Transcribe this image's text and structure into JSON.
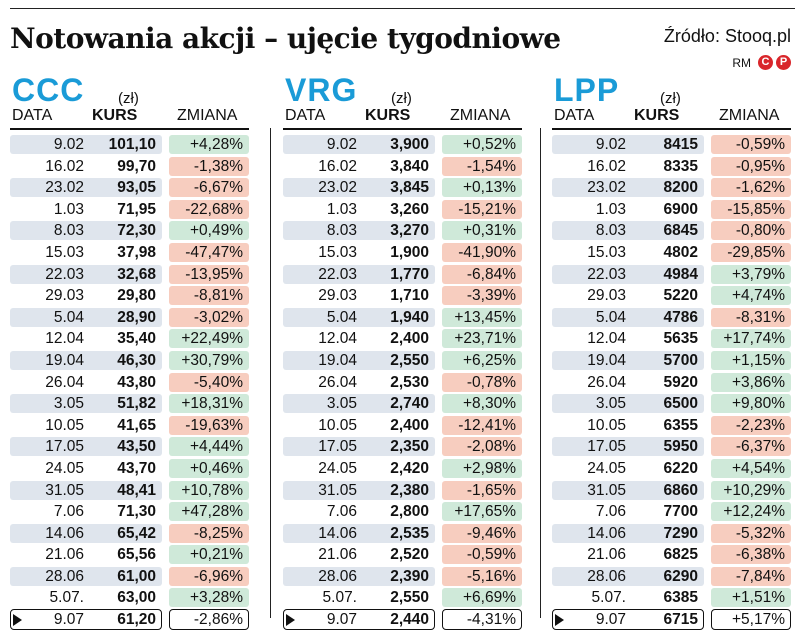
{
  "title": "Notowania akcji – ujęcie tygodniowe",
  "source": "Źródło: Stooq.pl",
  "logo": {
    "rm": "RM",
    "c": "C",
    "p": "P"
  },
  "headers": {
    "unit": "(zł)",
    "data": "DATA",
    "kurs": "KURS",
    "zmiana": "ZMIANA"
  },
  "colors": {
    "ticker": "#1a9bd7",
    "positive": "#cfe9d9",
    "negative": "#f7cdbf",
    "row_shade": "#dfe5ed",
    "logo_red": "#d9262b"
  },
  "chart_data": [
    {
      "type": "table",
      "ticker": "CCC",
      "columns": [
        "DATA",
        "KURS (zł)",
        "ZMIANA"
      ],
      "dates": [
        "9.02",
        "16.02",
        "23.02",
        "1.03",
        "8.03",
        "15.03",
        "22.03",
        "29.03",
        "5.04",
        "12.04",
        "19.04",
        "26.04",
        "3.05",
        "10.05",
        "17.05",
        "24.05",
        "31.05",
        "7.06",
        "14.06",
        "21.06",
        "28.06",
        "5.07.",
        "9.07"
      ],
      "kurs": [
        "101,10",
        "99,70",
        "93,05",
        "71,95",
        "72,30",
        "37,98",
        "32,68",
        "29,80",
        "28,90",
        "35,40",
        "46,30",
        "43,80",
        "51,82",
        "41,65",
        "43,50",
        "43,70",
        "48,41",
        "71,30",
        "65,42",
        "65,56",
        "61,00",
        "63,00",
        "61,20"
      ],
      "zmiana": [
        "+4,28%",
        "-1,38%",
        "-6,67%",
        "-22,68%",
        "+0,49%",
        "-47,47%",
        "-13,95%",
        "-8,81%",
        "-3,02%",
        "+22,49%",
        "+30,79%",
        "-5,40%",
        "+18,31%",
        "-19,63%",
        "+4,44%",
        "+0,46%",
        "+10,78%",
        "+47,28%",
        "-8,25%",
        "+0,21%",
        "-6,96%",
        "+3,28%",
        "-2,86%"
      ]
    },
    {
      "type": "table",
      "ticker": "VRG",
      "columns": [
        "DATA",
        "KURS (zł)",
        "ZMIANA"
      ],
      "dates": [
        "9.02",
        "16.02",
        "23.02",
        "1.03",
        "8.03",
        "15.03",
        "22.03",
        "29.03",
        "5.04",
        "12.04",
        "19.04",
        "26.04",
        "3.05",
        "10.05",
        "17.05",
        "24.05",
        "31.05",
        "7.06",
        "14.06",
        "21.06",
        "28.06",
        "5.07.",
        "9.07"
      ],
      "kurs": [
        "3,900",
        "3,840",
        "3,845",
        "3,260",
        "3,270",
        "1,900",
        "1,770",
        "1,710",
        "1,940",
        "2,400",
        "2,550",
        "2,530",
        "2,740",
        "2,400",
        "2,350",
        "2,420",
        "2,380",
        "2,800",
        "2,535",
        "2,520",
        "2,390",
        "2,550",
        "2,440"
      ],
      "zmiana": [
        "+0,52%",
        "-1,54%",
        "+0,13%",
        "-15,21%",
        "+0,31%",
        "-41,90%",
        "-6,84%",
        "-3,39%",
        "+13,45%",
        "+23,71%",
        "+6,25%",
        "-0,78%",
        "+8,30%",
        "-12,41%",
        "-2,08%",
        "+2,98%",
        "-1,65%",
        "+17,65%",
        "-9,46%",
        "-0,59%",
        "-5,16%",
        "+6,69%",
        "-4,31%"
      ]
    },
    {
      "type": "table",
      "ticker": "LPP",
      "columns": [
        "DATA",
        "KURS (zł)",
        "ZMIANA"
      ],
      "dates": [
        "9.02",
        "16.02",
        "23.02",
        "1.03",
        "8.03",
        "15.03",
        "22.03",
        "29.03",
        "5.04",
        "12.04",
        "19.04",
        "26.04",
        "3.05",
        "10.05",
        "17.05",
        "24.05",
        "31.05",
        "7.06",
        "14.06",
        "21.06",
        "28.06",
        "5.07.",
        "9.07"
      ],
      "kurs": [
        "8415",
        "8335",
        "8200",
        "6900",
        "6845",
        "4802",
        "4984",
        "5220",
        "4786",
        "5635",
        "5700",
        "5920",
        "6500",
        "6355",
        "5950",
        "6220",
        "6860",
        "7700",
        "7290",
        "6825",
        "6290",
        "6385",
        "6715"
      ],
      "zmiana": [
        "-0,59%",
        "-0,95%",
        "-1,62%",
        "-15,85%",
        "-0,80%",
        "-29,85%",
        "+3,79%",
        "+4,74%",
        "-8,31%",
        "+17,74%",
        "+1,15%",
        "+3,86%",
        "+9,80%",
        "-2,23%",
        "-6,37%",
        "+4,54%",
        "+10,29%",
        "+12,24%",
        "-5,32%",
        "-6,38%",
        "-7,84%",
        "+1,51%",
        "+5,17%"
      ]
    }
  ]
}
